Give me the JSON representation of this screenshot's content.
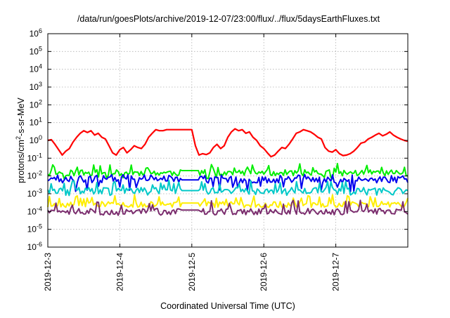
{
  "chart_data": {
    "type": "line",
    "title": "/data/run/goesPlots/archive/2019-12-07/23:00/flux/../flux/5daysEarthFluxes.txt",
    "xlabel": "Coordinated Universal Time (UTC)",
    "ylabel": {
      "base": "protons/cm",
      "sup": "2",
      "rest": "-s-sr-MeV"
    },
    "x_range": [
      "2019-12-03",
      "2019-12-08"
    ],
    "x_ticks": [
      "2019-12-3",
      "2019-12-4",
      "2019-12-5",
      "2019-12-6",
      "2019-12-7"
    ],
    "y_scale": "log",
    "y_range": [
      1e-06,
      1000000.0
    ],
    "y_ticks": [
      {
        "base": "10",
        "exp": "6"
      },
      {
        "base": "10",
        "exp": "5"
      },
      {
        "base": "10",
        "exp": "4"
      },
      {
        "base": "10",
        "exp": "3"
      },
      {
        "base": "10",
        "exp": "2"
      },
      {
        "base": "10",
        "exp": "1"
      },
      {
        "base": "10",
        "exp": "0"
      },
      {
        "base": "10",
        "exp": "-1"
      },
      {
        "base": "10",
        "exp": "-2"
      },
      {
        "base": "10",
        "exp": "-3"
      },
      {
        "base": "10",
        "exp": "-4"
      },
      {
        "base": "10",
        "exp": "-5"
      },
      {
        "base": "10",
        "exp": "-6"
      }
    ],
    "grid": true,
    "legend": "none",
    "series": [
      {
        "color": "#ff0000",
        "x": [
          3.0,
          3.05,
          3.1,
          3.15,
          3.2,
          3.25,
          3.3,
          3.35,
          3.4,
          3.45,
          3.5,
          3.55,
          3.6,
          3.65,
          3.7,
          3.75,
          3.8,
          3.85,
          3.9,
          3.95,
          4.0,
          4.05,
          4.1,
          4.15,
          4.2,
          4.25,
          4.3,
          4.35,
          4.4,
          4.45,
          4.5,
          4.55,
          4.6,
          4.65,
          4.7,
          4.75,
          4.8,
          4.85,
          4.9,
          4.95,
          5.0,
          5.05,
          5.1,
          5.15,
          5.2,
          5.25,
          5.3,
          5.35,
          5.4,
          5.45,
          5.5,
          5.55,
          5.6,
          5.65,
          5.7,
          5.75,
          5.8,
          5.85,
          5.9,
          5.95,
          6.0,
          6.05,
          6.1,
          6.15,
          6.2,
          6.25,
          6.3,
          6.35,
          6.4,
          6.45,
          6.5,
          6.55,
          6.6,
          6.65,
          6.7,
          6.75,
          6.8,
          6.85,
          6.9,
          6.95,
          7.0,
          7.05,
          7.1,
          7.15,
          7.2,
          7.25,
          7.3,
          7.35,
          7.4,
          7.45,
          7.5,
          7.55,
          7.6,
          7.65,
          7.7,
          7.75,
          7.8,
          7.85,
          7.9,
          7.95,
          8.0
        ],
        "values": [
          1.0,
          1.1,
          0.6,
          0.3,
          0.15,
          0.25,
          0.35,
          0.8,
          1.5,
          2.5,
          3.5,
          2.8,
          3.5,
          2.0,
          2.5,
          1.5,
          1.2,
          0.5,
          0.2,
          0.15,
          0.3,
          0.4,
          0.2,
          0.3,
          0.5,
          0.4,
          0.35,
          0.6,
          1.5,
          2.5,
          4.0,
          3.5,
          3.5,
          4.0,
          4.0,
          4.0,
          4.0,
          4.0,
          4.0,
          4.0,
          4.0,
          0.5,
          0.15,
          0.18,
          0.16,
          0.2,
          0.4,
          0.6,
          0.35,
          0.5,
          1.5,
          3.0,
          4.5,
          3.5,
          4.0,
          2.5,
          3.0,
          1.5,
          1.0,
          0.5,
          0.35,
          0.2,
          0.12,
          0.15,
          0.25,
          0.4,
          0.35,
          0.6,
          1.2,
          2.5,
          3.0,
          4.0,
          3.5,
          3.0,
          2.2,
          1.5,
          1.2,
          0.4,
          0.25,
          0.22,
          0.3,
          0.18,
          0.14,
          0.15,
          0.18,
          0.25,
          0.4,
          0.7,
          0.8,
          1.2,
          1.5,
          2.0,
          2.5,
          1.8,
          2.2,
          3.0,
          2.0,
          1.5,
          1.2,
          1.0,
          0.9
        ]
      }
    ],
    "bands": [
      {
        "color": "#00ee00",
        "median": 0.015,
        "spike": 0.05,
        "dip": 0.006,
        "seed": 11,
        "flat": 0.02
      },
      {
        "color": "#0000ee",
        "median": 0.006,
        "spike": 0.012,
        "dip": 0.0012,
        "seed": 23,
        "flat": 0.006
      },
      {
        "color": "#00c8c8",
        "median": 0.0015,
        "spike": 0.006,
        "dip": 0.0008,
        "seed": 37,
        "flat": 0.0015
      },
      {
        "color": "#ffee00",
        "median": 0.00025,
        "spike": 0.0009,
        "dip": 0.00018,
        "seed": 53,
        "flat": 0.0003
      },
      {
        "color": "#7b2d6e",
        "median": 0.0001,
        "spike": 0.0005,
        "dip": 6e-05,
        "seed": 71,
        "flat": 0.00012
      }
    ],
    "flat_segment_x": [
      4.85,
      5.1
    ]
  }
}
